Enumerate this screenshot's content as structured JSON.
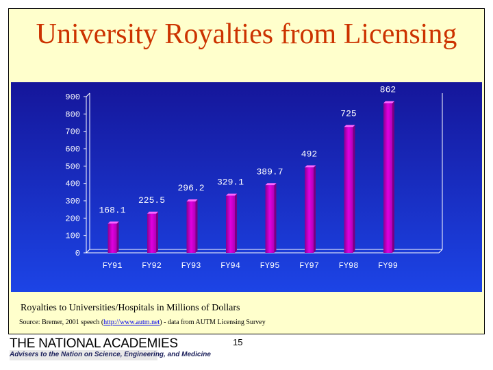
{
  "slide": {
    "title": "University Royalties from Licensing",
    "caption": "Royalties to Universities/Hospitals in Millions of Dollars",
    "source_prefix": "Source: Bremer, 2001 speech (",
    "source_link": "http://www.autm.net",
    "source_suffix": ") - data from AUTM Licensing Survey",
    "page_number": "15",
    "logo_main": "THE NATIONAL ACADEMIES",
    "logo_sub": "Advisers to the Nation on Science, Engineering, and Medicine"
  },
  "colors": {
    "title": "#cc3300",
    "bar": "#cc00cc",
    "background_top": "#1a1aa0",
    "background_bottom": "#1838e0"
  },
  "chart_data": {
    "type": "bar",
    "categories": [
      "FY91",
      "FY92",
      "FY93",
      "FY94",
      "FY95",
      "FY97",
      "FY98",
      "FY99"
    ],
    "values": [
      168.1,
      225.5,
      296.2,
      329.1,
      389.7,
      492,
      725,
      862
    ],
    "value_labels": [
      "168.1",
      "225.5",
      "296.2",
      "329.1",
      "389.7",
      "492",
      "725",
      "862"
    ],
    "y_ticks": [
      "0",
      "100",
      "200",
      "300",
      "400",
      "500",
      "600",
      "700",
      "800",
      "900"
    ],
    "ylim": [
      0,
      900
    ],
    "grid": false
  }
}
